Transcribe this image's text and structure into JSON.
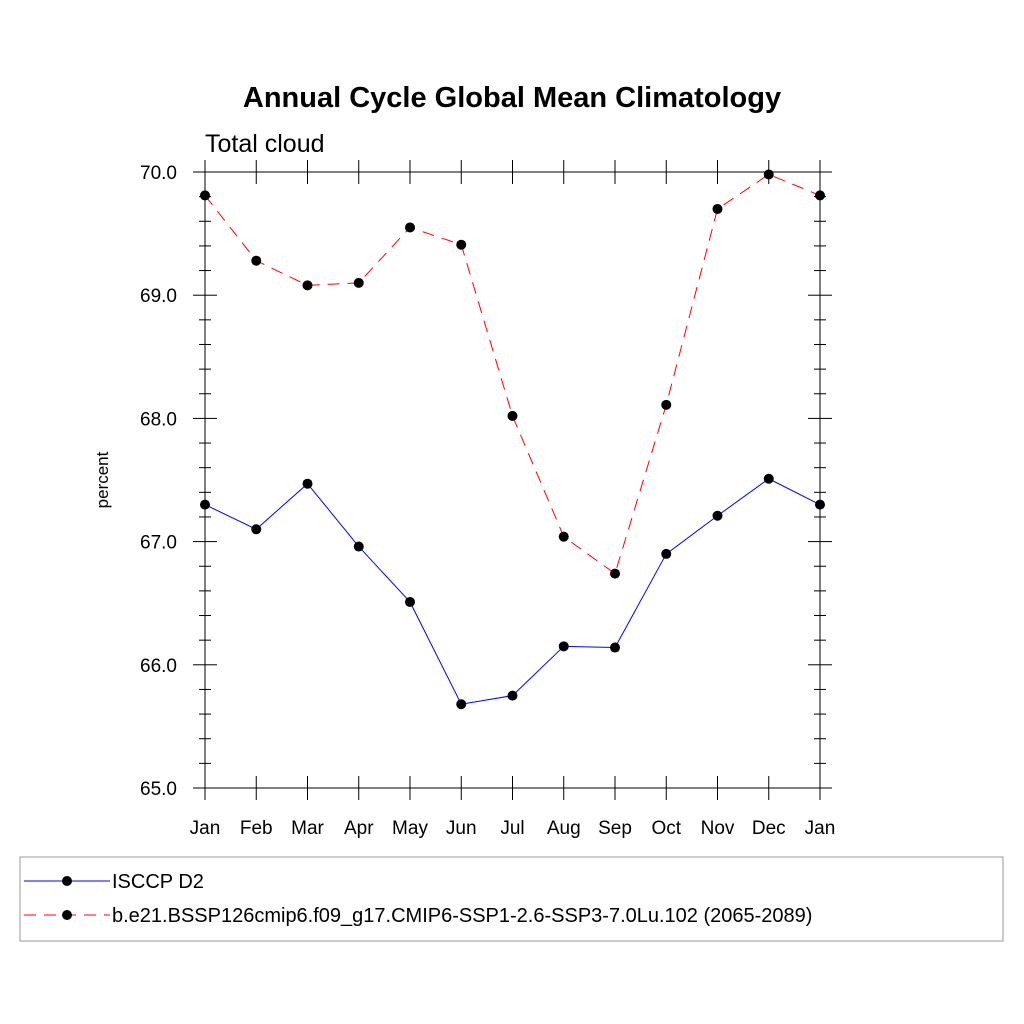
{
  "chart_data": {
    "type": "line",
    "title": "Annual Cycle Global Mean Climatology",
    "subtitle": "Total cloud",
    "xlabel": "",
    "ylabel": "percent",
    "categories": [
      "Jan",
      "Feb",
      "Mar",
      "Apr",
      "May",
      "Jun",
      "Jul",
      "Aug",
      "Sep",
      "Oct",
      "Nov",
      "Dec",
      "Jan"
    ],
    "ylim": [
      65.0,
      70.0
    ],
    "yticks": [
      "65.0",
      "66.0",
      "67.0",
      "68.0",
      "69.0",
      "70.0"
    ],
    "grid": false,
    "legend_position": "bottom",
    "series": [
      {
        "name": "ISCCP D2",
        "color": "#0000ff",
        "line_style": "solid",
        "marker": "filled-circle",
        "values": [
          67.3,
          67.1,
          67.47,
          66.96,
          66.51,
          65.68,
          65.75,
          66.15,
          66.14,
          66.9,
          67.21,
          67.51,
          67.3
        ]
      },
      {
        "name": "b.e21.BSSP126cmip6.f09_g17.CMIP6-SSP1-2.6-SSP3-7.0Lu.102 (2065-2089)",
        "color": "#ff0000",
        "line_style": "dashed",
        "marker": "filled-circle",
        "values": [
          69.81,
          69.28,
          69.08,
          69.1,
          69.55,
          69.41,
          68.02,
          67.04,
          66.74,
          68.11,
          69.7,
          69.98,
          69.81
        ]
      }
    ]
  }
}
